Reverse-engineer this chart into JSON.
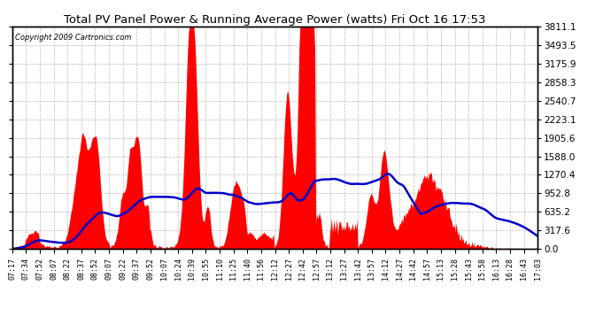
{
  "title": "Total PV Panel Power & Running Average Power (watts) Fri Oct 16 17:53",
  "copyright": "Copyright 2009 Cartronics.com",
  "background_color": "#ffffff",
  "plot_bg_color": "#ffffff",
  "grid_color": "#aaaaaa",
  "fill_color": "#ff0000",
  "line_color": "#0000cc",
  "y_ticks": [
    0.0,
    317.6,
    635.2,
    952.8,
    1270.4,
    1588.0,
    1905.6,
    2223.1,
    2540.7,
    2858.3,
    3175.9,
    3493.5,
    3811.1
  ],
  "x_labels": [
    "07:17",
    "07:34",
    "07:52",
    "08:07",
    "08:22",
    "08:37",
    "08:52",
    "09:07",
    "09:22",
    "09:37",
    "09:52",
    "10:07",
    "10:24",
    "10:39",
    "10:55",
    "11:10",
    "11:25",
    "11:40",
    "11:56",
    "12:12",
    "12:27",
    "12:42",
    "12:57",
    "13:12",
    "13:27",
    "13:42",
    "13:57",
    "14:12",
    "14:27",
    "14:42",
    "14:57",
    "15:13",
    "15:28",
    "15:43",
    "15:58",
    "16:13",
    "16:28",
    "16:43",
    "17:03"
  ],
  "ymax": 3811.1,
  "ymin": 0.0,
  "n_points": 600
}
